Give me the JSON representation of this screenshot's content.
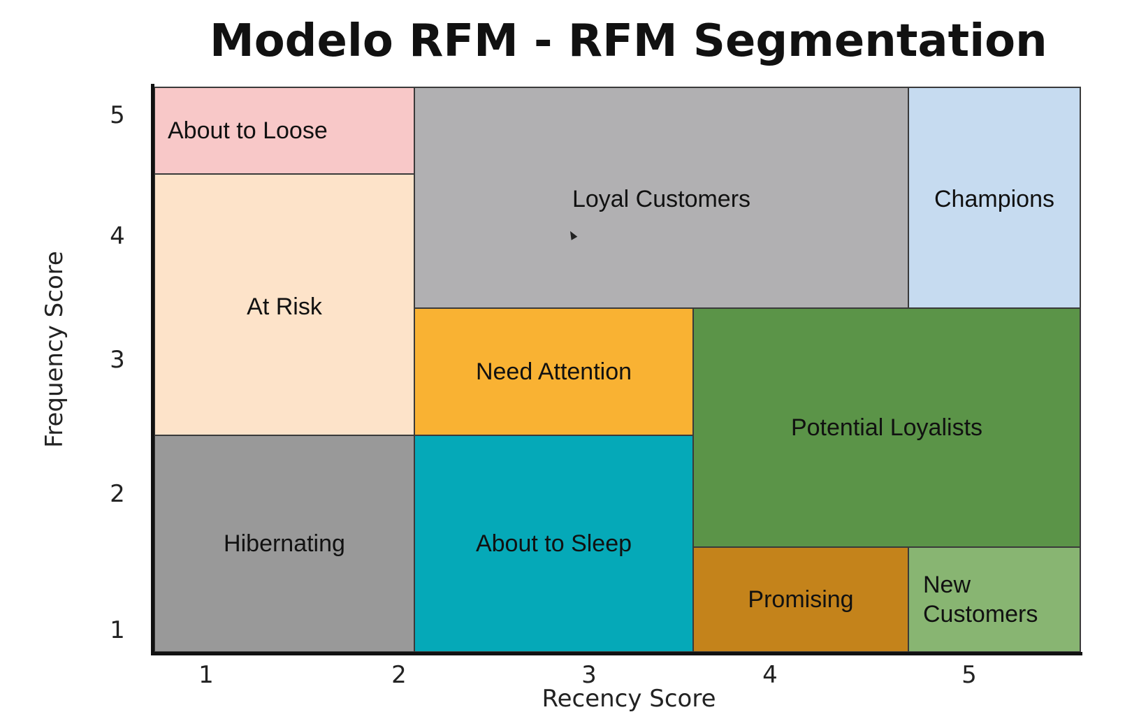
{
  "title": "Modelo RFM - RFM Segmentation",
  "axes": {
    "x_label": "Recency Score",
    "y_label": "Frequency Score",
    "x_ticks": [
      "1",
      "2",
      "3",
      "4",
      "5"
    ],
    "y_ticks": [
      "5",
      "4",
      "3",
      "2",
      "1"
    ]
  },
  "segments": [
    {
      "key": "about_to_loose",
      "label": "About to Loose",
      "color": "#f8c8c8"
    },
    {
      "key": "at_risk",
      "label": "At Risk",
      "color": "#fde3c9"
    },
    {
      "key": "hibernating",
      "label": "Hibernating",
      "color": "#999999"
    },
    {
      "key": "loyal_customers",
      "label": "Loyal Customers",
      "color": "#b1b0b2"
    },
    {
      "key": "champions",
      "label": "Champions",
      "color": "#c6dbf0"
    },
    {
      "key": "need_attention",
      "label": "Need Attention",
      "color": "#f9b233"
    },
    {
      "key": "about_to_sleep",
      "label": "About to Sleep",
      "color": "#05a9b8"
    },
    {
      "key": "potential_loyalists",
      "label": "Potential Loyalists",
      "color": "#5b9448"
    },
    {
      "key": "promising",
      "label": "Promising",
      "color": "#c4831b"
    },
    {
      "key": "new_customers",
      "label": "New\nCustomers",
      "color": "#88b572"
    }
  ]
}
